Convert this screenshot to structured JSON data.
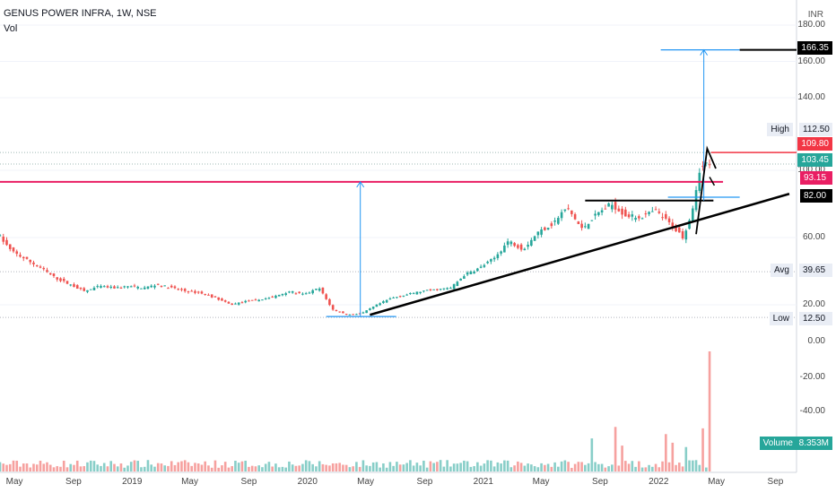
{
  "header": {
    "title": "GENUS POWER INFRA, 1W, NSE",
    "indicator": "Vol",
    "currency": "INR"
  },
  "colors": {
    "up": "#26a69a",
    "down": "#ef5350",
    "trendline": "#000000",
    "measure": "#2196f3",
    "resistance": "#e91e63"
  },
  "chart_data": {
    "type": "line",
    "x_ticks": [
      "May",
      "Sep",
      "2019",
      "May",
      "Sep",
      "2020",
      "May",
      "Sep",
      "2021",
      "May",
      "Sep",
      "2022",
      "May",
      "Sep"
    ],
    "x_tick_dates": [
      "2018-05",
      "2018-09",
      "2019-01",
      "2019-05",
      "2019-09",
      "2020-01",
      "2020-05",
      "2020-09",
      "2021-01",
      "2021-05",
      "2021-09",
      "2022-01",
      "2022-05",
      "2022-09"
    ],
    "y_ticks": [
      "180.00",
      "160.00",
      "140.00",
      "100.00",
      "60.00",
      "20.00"
    ],
    "vol_ticks": [
      "0.00",
      "-20.00",
      "-40.00"
    ],
    "ylim": [
      10,
      182
    ],
    "price_labels": {
      "target": "166.35",
      "high_label": "High",
      "high": "112.50",
      "level_red": "109.80",
      "last": "103.45",
      "resistance": "93.15",
      "breakout": "82.00",
      "avg_label": "Avg",
      "avg": "39.65",
      "low_label": "Low",
      "low": "12.50"
    },
    "volume_label": "Volume",
    "volume_value": "8.353M",
    "price_path": [
      [
        "2018-04-01",
        63
      ],
      [
        "2018-05-01",
        52
      ],
      [
        "2018-06-01",
        47
      ],
      [
        "2018-07-01",
        42
      ],
      [
        "2018-08-01",
        36
      ],
      [
        "2018-09-01",
        32
      ],
      [
        "2018-10-01",
        28
      ],
      [
        "2018-11-01",
        31
      ],
      [
        "2018-12-01",
        30
      ],
      [
        "2019-01-01",
        31
      ],
      [
        "2019-02-01",
        30
      ],
      [
        "2019-03-01",
        32
      ],
      [
        "2019-04-01",
        30
      ],
      [
        "2019-05-01",
        28
      ],
      [
        "2019-06-01",
        27
      ],
      [
        "2019-07-01",
        24
      ],
      [
        "2019-08-01",
        20
      ],
      [
        "2019-09-01",
        22
      ],
      [
        "2019-10-01",
        23
      ],
      [
        "2019-11-01",
        25
      ],
      [
        "2019-12-01",
        28
      ],
      [
        "2020-01-01",
        26
      ],
      [
        "2020-02-01",
        30
      ],
      [
        "2020-03-01",
        17
      ],
      [
        "2020-04-01",
        14
      ],
      [
        "2020-05-01",
        15
      ],
      [
        "2020-06-01",
        20
      ],
      [
        "2020-07-01",
        24
      ],
      [
        "2020-08-01",
        26
      ],
      [
        "2020-09-01",
        28
      ],
      [
        "2020-10-01",
        29
      ],
      [
        "2020-11-01",
        30
      ],
      [
        "2020-12-01",
        38
      ],
      [
        "2021-01-01",
        42
      ],
      [
        "2021-02-01",
        48
      ],
      [
        "2021-03-01",
        58
      ],
      [
        "2021-04-01",
        53
      ],
      [
        "2021-05-01",
        63
      ],
      [
        "2021-06-01",
        68
      ],
      [
        "2021-07-01",
        78
      ],
      [
        "2021-08-01",
        65
      ],
      [
        "2021-09-01",
        74
      ],
      [
        "2021-10-01",
        80
      ],
      [
        "2021-11-01",
        73
      ],
      [
        "2021-12-01",
        72
      ],
      [
        "2022-01-01",
        76
      ],
      [
        "2022-02-01",
        68
      ],
      [
        "2022-03-01",
        60
      ],
      [
        "2022-03-20",
        78
      ],
      [
        "2022-04-03",
        100
      ],
      [
        "2022-04-17",
        103.45
      ]
    ],
    "volume_bars": [
      [
        "2021-08-15",
        2.3
      ],
      [
        "2021-10-01",
        3.1
      ],
      [
        "2021-10-15",
        1.8
      ],
      [
        "2022-01-15",
        2.6
      ],
      [
        "2022-02-01",
        2.0
      ],
      [
        "2022-03-01",
        1.7
      ],
      [
        "2022-04-03",
        3.0
      ],
      [
        "2022-04-17",
        8.353
      ]
    ],
    "annotations": {
      "trendline": [
        [
          "2020-05-10",
          14
        ],
        [
          "2022-09-30",
          86
        ]
      ],
      "breakout_line": [
        [
          "2021-08-01",
          82
        ],
        [
          "2022-04-25",
          82
        ]
      ],
      "resistance_line": [
        [
          "2018-04-01",
          93.15
        ],
        [
          "2022-05-15",
          93.15
        ]
      ],
      "measure_1": [
        [
          "2020-04-20",
          13
        ],
        [
          "2020-04-20",
          93.15
        ]
      ],
      "measure_2": [
        [
          "2022-04-05",
          82
        ],
        [
          "2022-04-05",
          166.35
        ]
      ]
    }
  }
}
